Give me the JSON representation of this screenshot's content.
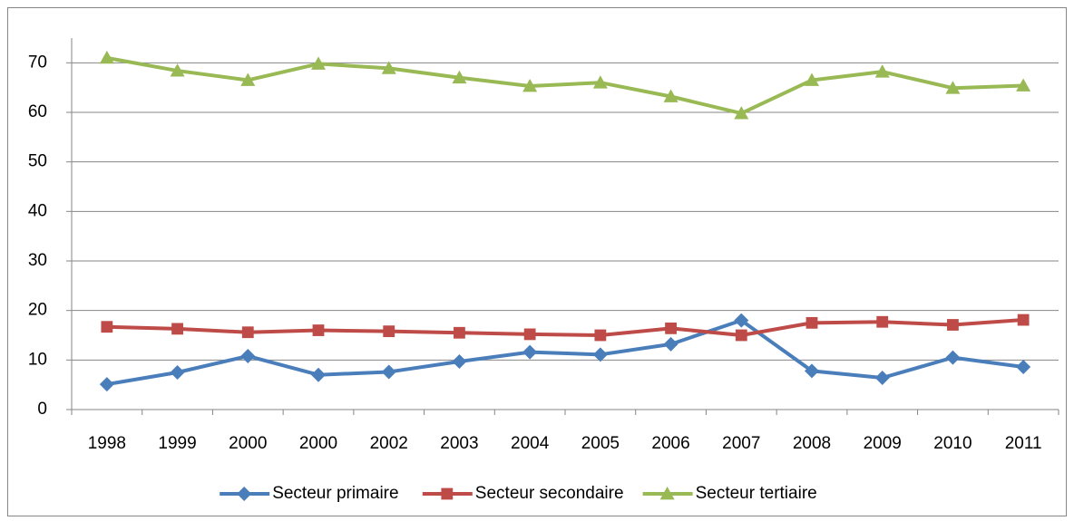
{
  "chart_data": {
    "type": "line",
    "categories": [
      "1998",
      "1999",
      "2000",
      "2000",
      "2002",
      "2003",
      "2004",
      "2005",
      "2006",
      "2007",
      "2008",
      "2009",
      "2010",
      "2011"
    ],
    "series": [
      {
        "name": "Secteur primaire",
        "color": "#4a7ebb",
        "marker": "diamond",
        "values": [
          5.1,
          7.5,
          10.8,
          7.0,
          7.6,
          9.7,
          11.6,
          11.1,
          13.2,
          18.0,
          7.8,
          6.4,
          10.5,
          8.6
        ]
      },
      {
        "name": "Secteur secondaire",
        "color": "#be4b48",
        "marker": "square",
        "values": [
          16.7,
          16.3,
          15.6,
          16.0,
          15.8,
          15.5,
          15.2,
          15.0,
          16.4,
          15.0,
          17.5,
          17.7,
          17.1,
          18.1
        ]
      },
      {
        "name": "Secteur tertiaire",
        "color": "#98b954",
        "marker": "triangle",
        "values": [
          71.0,
          68.4,
          66.5,
          69.8,
          68.9,
          67.0,
          65.3,
          66.0,
          63.2,
          59.8,
          66.5,
          68.2,
          64.9,
          65.4
        ]
      }
    ],
    "ylim": [
      0,
      75
    ],
    "yticks": [
      0,
      10,
      20,
      30,
      40,
      50,
      60,
      70
    ],
    "grid": true,
    "legend": "bottom"
  }
}
